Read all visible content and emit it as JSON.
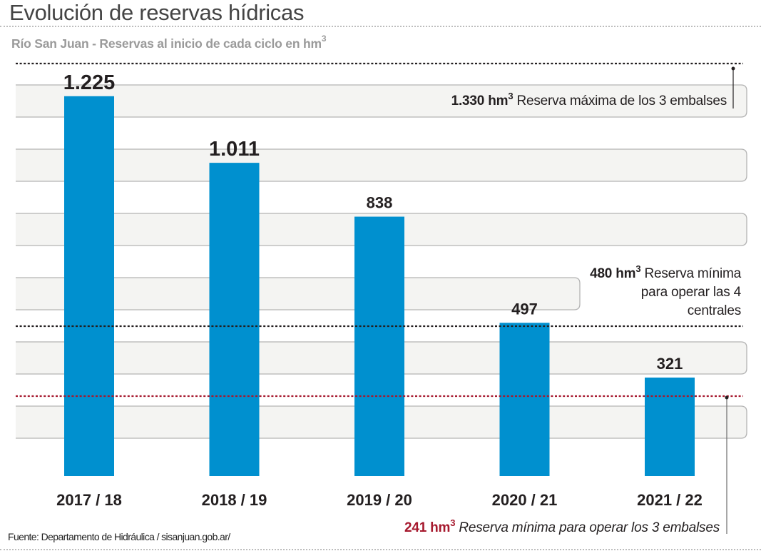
{
  "header": {
    "title": "Evolución de reservas hídricas",
    "subtitle": "Río San Juan - Reservas al inicio de cada ciclo en hm",
    "subtitle_sup": "3"
  },
  "footer": {
    "source": "Fuente: Departamento de Hidráulica / sisanjuan.gob.ar/"
  },
  "colors": {
    "bar": "#0090cf",
    "band_fill": "#f4f4f2",
    "band_border": "#b3b3b3",
    "reference_black": "#231f20",
    "reference_red": "#a6192e",
    "text": "#231f20"
  },
  "chart_data": {
    "type": "bar",
    "title": "Evolución de reservas hídricas",
    "subtitle": "Río San Juan - Reservas al inicio de cada ciclo en hm3",
    "xlabel": "",
    "ylabel": "hm3",
    "categories": [
      "2017 / 18",
      "2018 / 19",
      "2019 / 20",
      "2020 / 21",
      "2021 / 22"
    ],
    "values": [
      1225,
      1011,
      838,
      497,
      321
    ],
    "value_labels": [
      "1.225",
      "1.011",
      "838",
      "497",
      "321"
    ],
    "ylim": [
      0,
      1330
    ],
    "grid": false,
    "reference_lines": [
      {
        "value": 1330,
        "label_value": "1.330 hm",
        "label_sup": "3",
        "label_text": " Reserva máxima de los 3 embalses",
        "style": "dotted",
        "color": "black"
      },
      {
        "value": 480,
        "label_value": "480 hm",
        "label_sup": "3",
        "label_text": " Reserva mínima para operar las 4 centrales",
        "style": "dotted",
        "color": "black"
      },
      {
        "value": 241,
        "label_value": "241 hm",
        "label_sup": "3",
        "label_text": " Reserva mínima para operar los 3 embalses",
        "style": "dotted",
        "color": "red"
      }
    ]
  }
}
